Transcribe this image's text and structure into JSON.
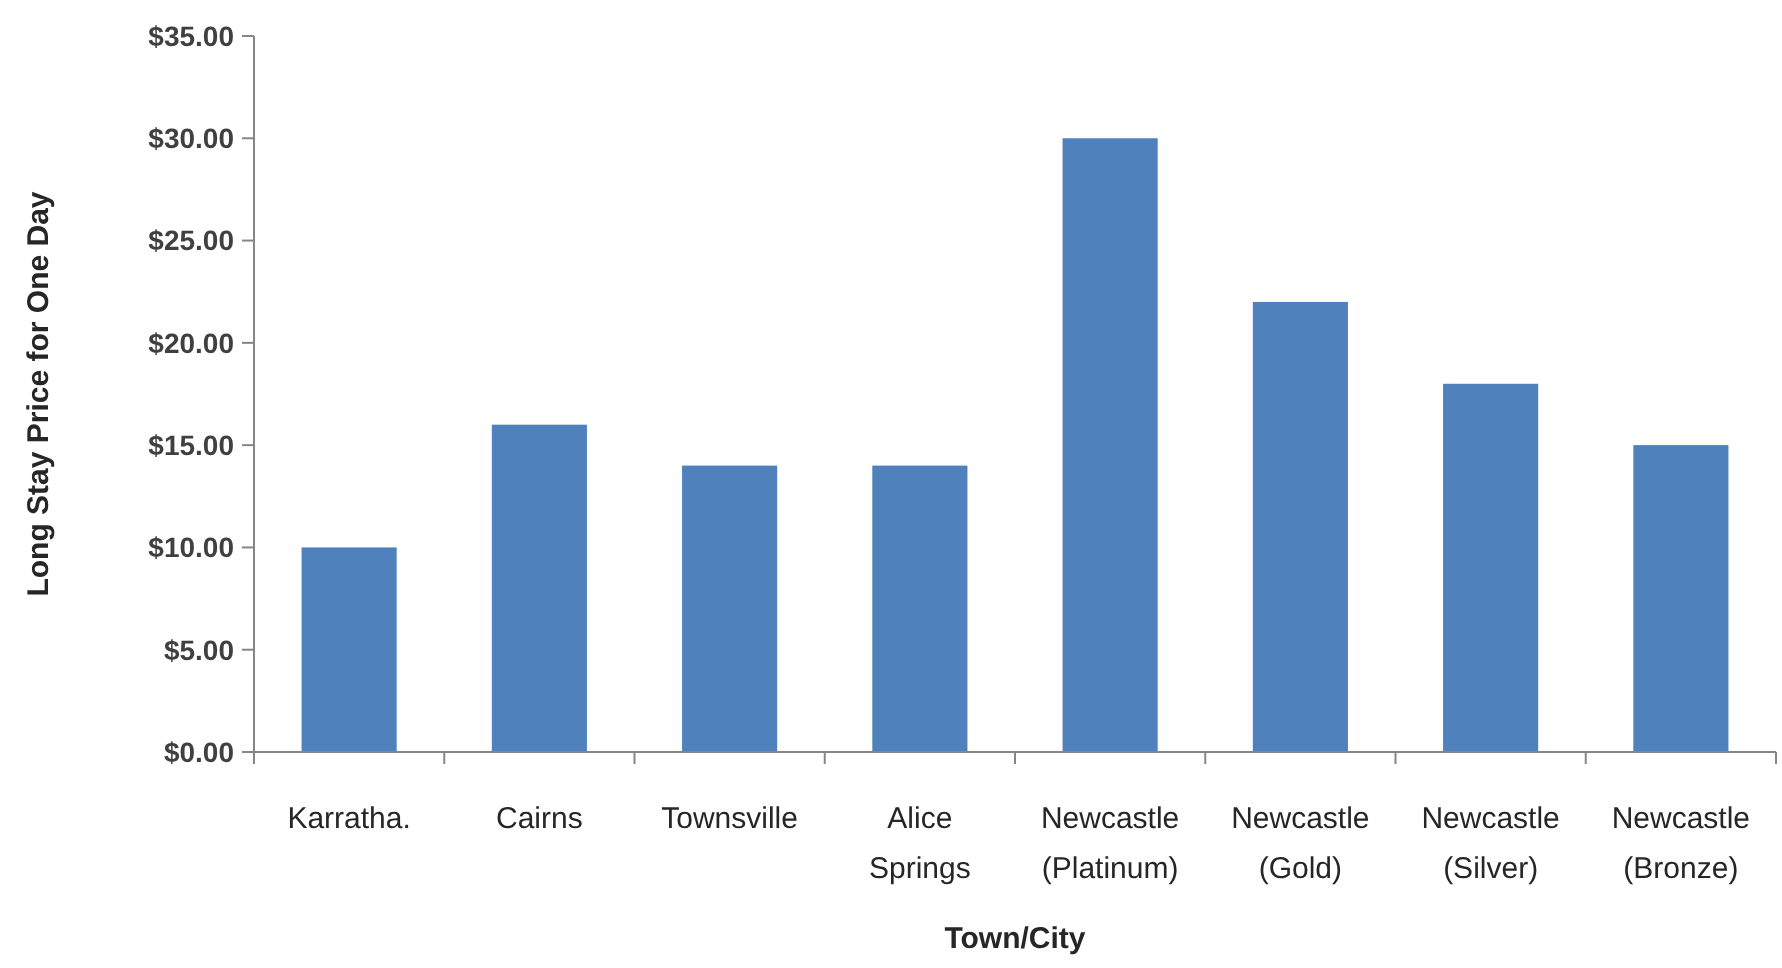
{
  "chart_data": {
    "type": "bar",
    "xlabel": "Town/City",
    "ylabel": "Long Stay Price for One Day",
    "categories": [
      "Karratha.",
      "Cairns",
      "Townsville",
      "Alice Springs",
      "Newcastle (Platinum)",
      "Newcastle (Gold)",
      "Newcastle (Silver)",
      "Newcastle (Bronze)"
    ],
    "values": [
      10,
      16,
      14,
      14,
      30,
      22,
      18,
      15
    ],
    "color": "#4f81bd",
    "ylim": [
      0,
      35
    ],
    "yticks": [
      {
        "value": 0,
        "label": "$0.00"
      },
      {
        "value": 5,
        "label": "$5.00"
      },
      {
        "value": 10,
        "label": "$10.00"
      },
      {
        "value": 15,
        "label": "$15.00"
      },
      {
        "value": 20,
        "label": "$20.00"
      },
      {
        "value": 25,
        "label": "$25.00"
      },
      {
        "value": 30,
        "label": "$30.00"
      },
      {
        "value": 35,
        "label": "$35.00"
      }
    ],
    "grid": false
  }
}
